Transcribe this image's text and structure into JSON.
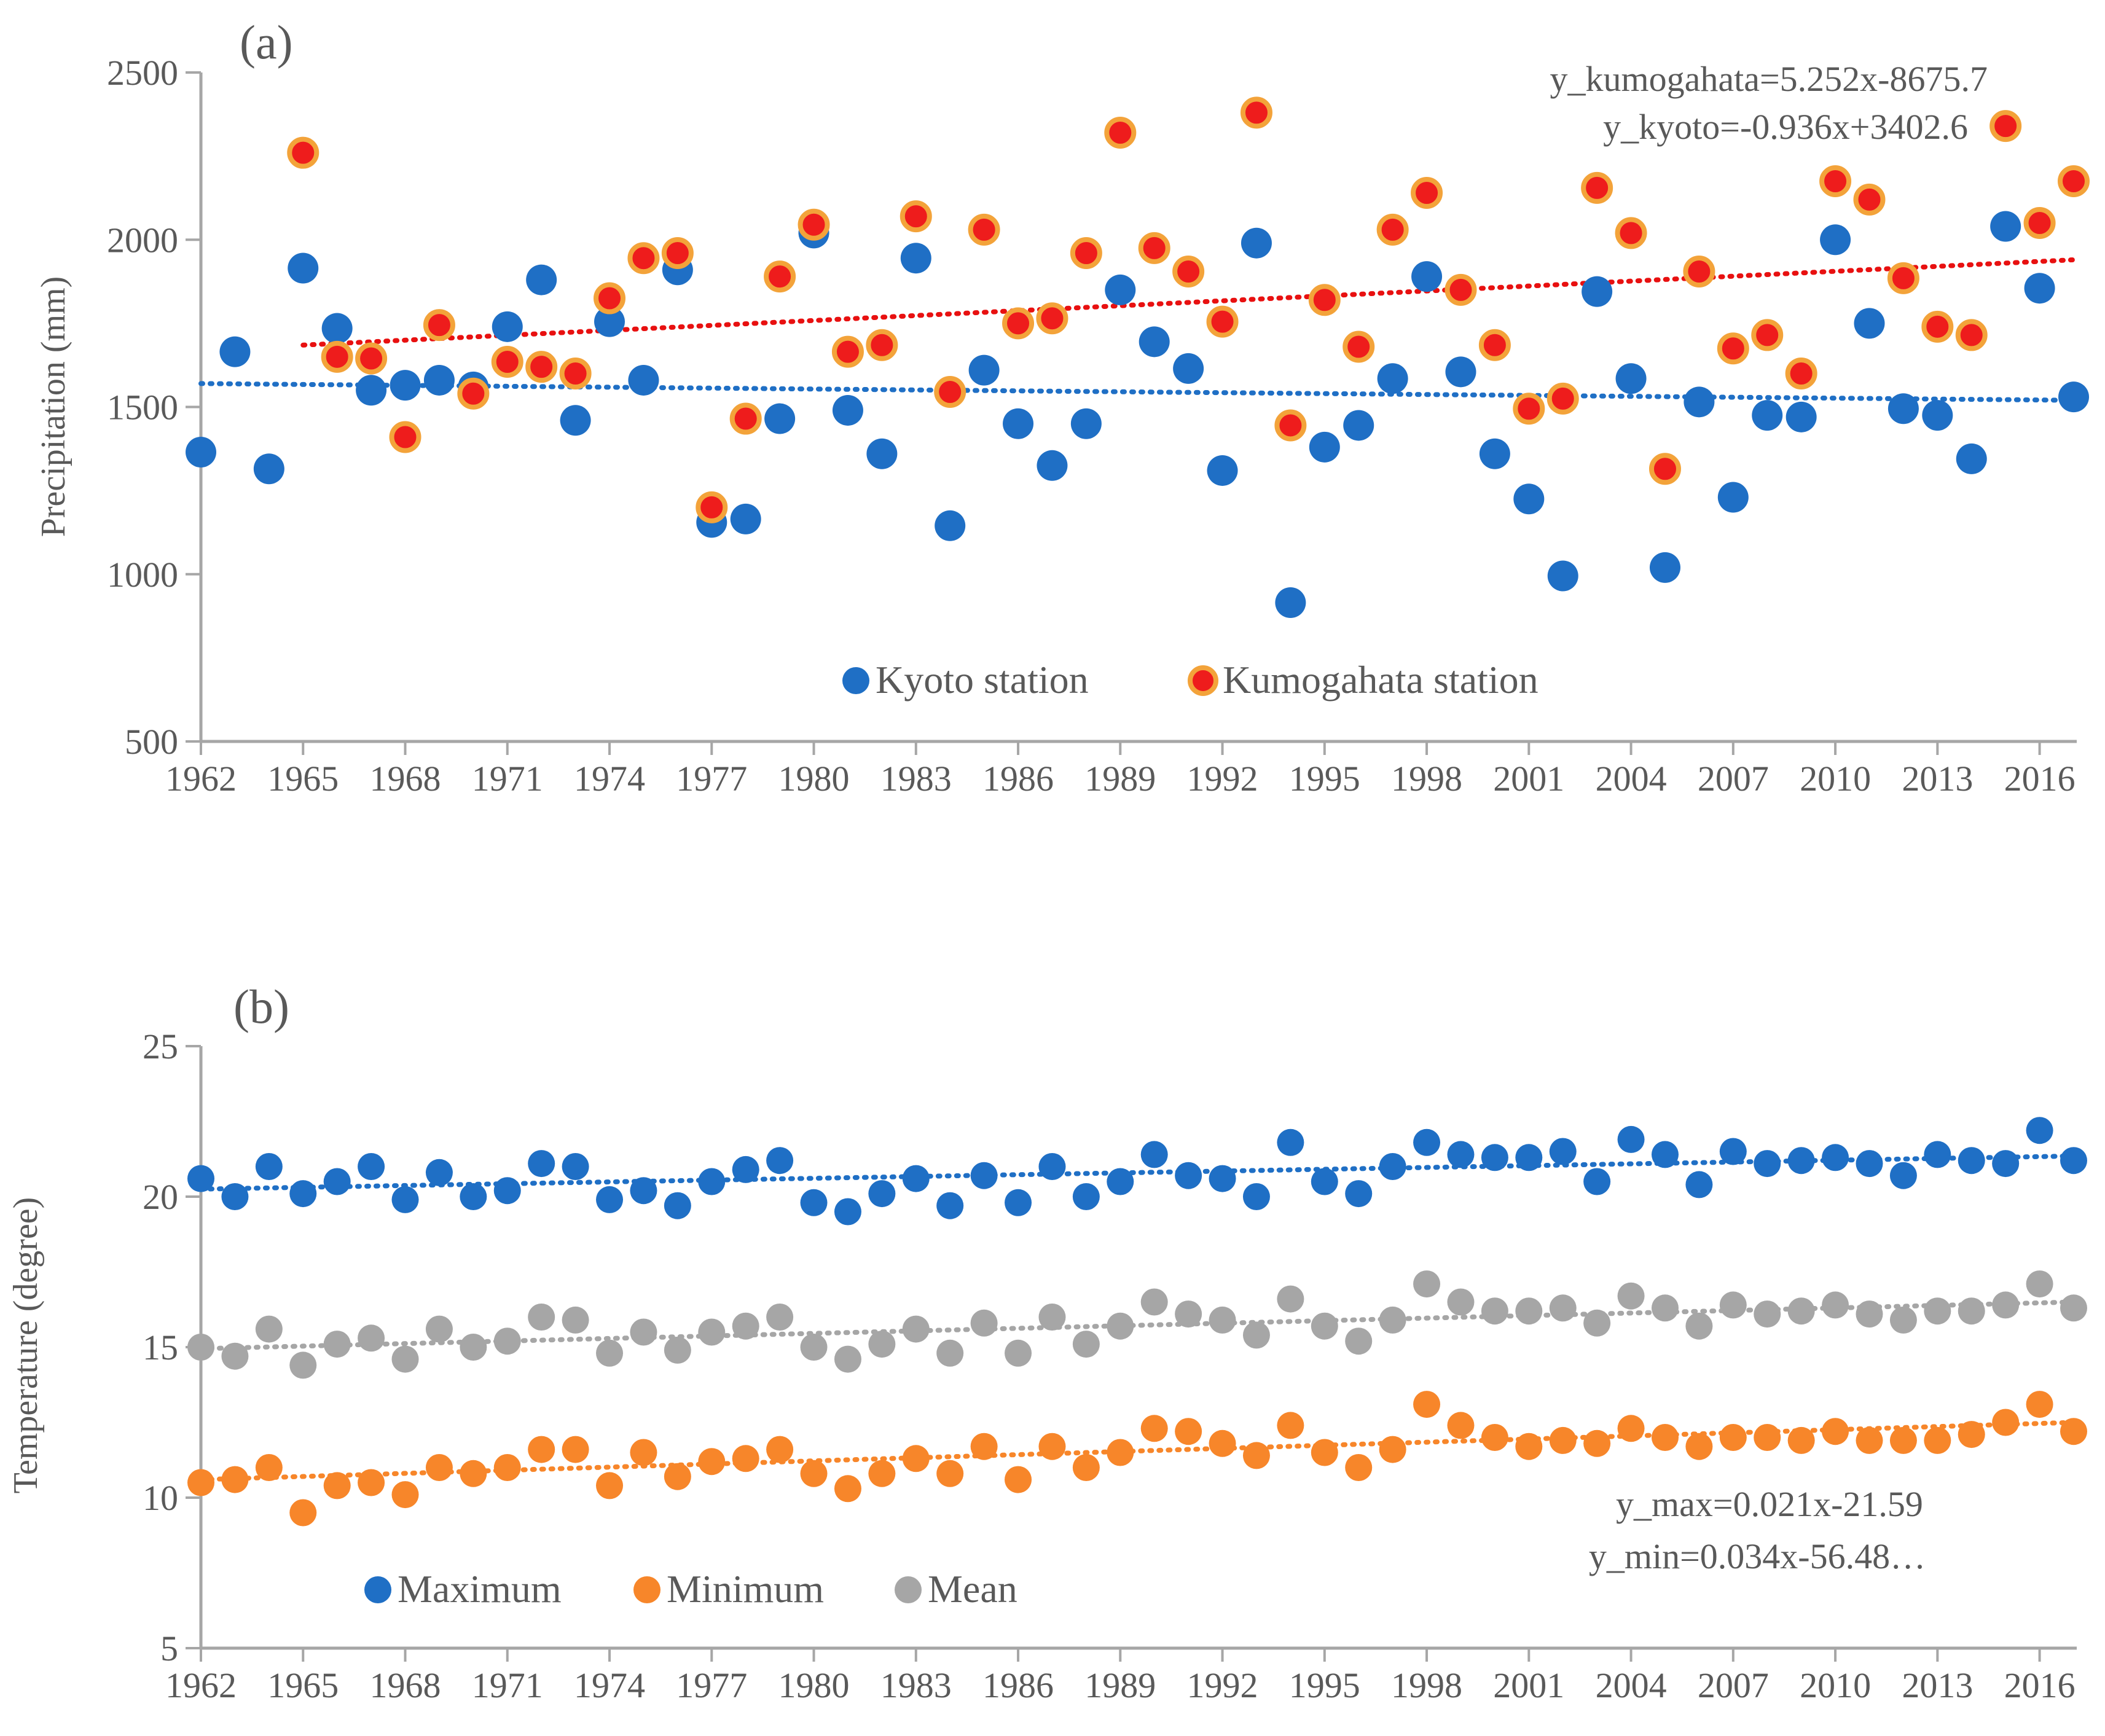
{
  "chart_data": [
    {
      "panel": "(a)",
      "type": "scatter",
      "ylabel": "Precipitation (mm)",
      "xlabel": "",
      "xlim": [
        1962,
        2017
      ],
      "ylim": [
        500,
        2500
      ],
      "yticks": [
        500,
        1000,
        1500,
        2000,
        2500
      ],
      "xticks": [
        1962,
        1965,
        1968,
        1971,
        1974,
        1977,
        1980,
        1983,
        1986,
        1989,
        1992,
        1995,
        1998,
        2001,
        2004,
        2007,
        2010,
        2013,
        2016
      ],
      "legend_position": "bottom-center",
      "equations": [
        "y_kumogahata=5.252x-8675.7",
        "y_kyoto=-0.936x+3402.6"
      ],
      "series": [
        {
          "name": "Kyoto station",
          "color": "#1f6fc5",
          "x": [
            1962,
            1963,
            1964,
            1965,
            1966,
            1967,
            1968,
            1969,
            1970,
            1971,
            1972,
            1973,
            1974,
            1975,
            1976,
            1977,
            1978,
            1979,
            1980,
            1981,
            1982,
            1983,
            1984,
            1985,
            1986,
            1987,
            1988,
            1989,
            1990,
            1991,
            1992,
            1993,
            1994,
            1995,
            1996,
            1997,
            1998,
            1999,
            2000,
            2001,
            2002,
            2003,
            2004,
            2005,
            2006,
            2007,
            2008,
            2009,
            2010,
            2011,
            2012,
            2013,
            2014,
            2015,
            2016,
            2017
          ],
          "values": [
            1365,
            1665,
            1315,
            1915,
            1735,
            1550,
            1565,
            1580,
            1560,
            1740,
            1880,
            1460,
            1755,
            1580,
            1910,
            1155,
            1165,
            1465,
            2020,
            1490,
            1360,
            1945,
            1145,
            1610,
            1450,
            1325,
            1450,
            1850,
            1695,
            1615,
            1310,
            1990,
            915,
            1380,
            1445,
            1585,
            1890,
            1605,
            1360,
            1225,
            995,
            1845,
            1585,
            1020,
            1515,
            1230,
            1475,
            1470,
            2000,
            1750,
            1495,
            1475,
            1345,
            2040,
            1855,
            1530
          ],
          "trend": {
            "start": 1570,
            "end": 1520
          }
        },
        {
          "name": "Kumogahata station",
          "color": "#ee1c1c",
          "border": "#f3a33a",
          "x": [
            1965,
            1966,
            1967,
            1968,
            1969,
            1970,
            1971,
            1972,
            1973,
            1974,
            1975,
            1976,
            1977,
            1978,
            1979,
            1980,
            1981,
            1982,
            1983,
            1984,
            1985,
            1986,
            1987,
            1988,
            1989,
            1990,
            1991,
            1992,
            1993,
            1994,
            1995,
            1996,
            1997,
            1998,
            1999,
            2000,
            2001,
            2002,
            2003,
            2004,
            2005,
            2006,
            2007,
            2008,
            2009,
            2010,
            2011,
            2012,
            2013,
            2014,
            2015,
            2016,
            2017
          ],
          "values": [
            2260,
            1650,
            1645,
            1410,
            1745,
            1540,
            1635,
            1620,
            1600,
            1825,
            1945,
            1960,
            1200,
            1465,
            1890,
            2045,
            1665,
            1685,
            2070,
            1545,
            2030,
            1750,
            1765,
            1960,
            2320,
            1975,
            1905,
            1755,
            2380,
            1445,
            1820,
            1680,
            2030,
            2140,
            1850,
            1685,
            1495,
            1525,
            2155,
            2020,
            1315,
            1905,
            1675,
            1715,
            1600,
            2175,
            2120,
            1885,
            1740,
            1715,
            2340,
            2050,
            2175
          ],
          "trend": {
            "start": 1685,
            "end": 1940
          }
        }
      ]
    },
    {
      "panel": "(b)",
      "type": "scatter",
      "ylabel": "Temperature (degree)",
      "xlabel": "",
      "xlim": [
        1962,
        2017
      ],
      "ylim": [
        5,
        25
      ],
      "yticks": [
        5,
        10,
        15,
        20,
        25
      ],
      "xticks": [
        1962,
        1965,
        1968,
        1971,
        1974,
        1977,
        1980,
        1983,
        1986,
        1989,
        1992,
        1995,
        1998,
        2001,
        2004,
        2007,
        2010,
        2013,
        2016
      ],
      "legend_position": "bottom-left",
      "equations": [
        "y_max=0.021x-21.59",
        "y_min=0.034x-56.48…"
      ],
      "series": [
        {
          "name": "Maximum",
          "color": "#1f6fc5",
          "values": [
            20.6,
            20.0,
            21.0,
            20.1,
            20.5,
            21.0,
            19.9,
            20.8,
            20.0,
            20.2,
            21.1,
            21.0,
            19.9,
            20.2,
            19.7,
            20.5,
            20.9,
            21.2,
            19.8,
            19.5,
            20.1,
            20.6,
            19.7,
            20.7,
            19.8,
            21.0,
            20.0,
            20.5,
            21.4,
            20.7,
            20.6,
            20.0,
            21.8,
            20.5,
            20.1,
            21.0,
            21.8,
            21.4,
            21.3,
            21.3,
            21.5,
            20.5,
            21.9,
            21.4,
            20.4,
            21.5,
            21.1,
            21.2,
            21.3,
            21.1,
            20.7,
            21.4,
            21.2,
            21.1,
            22.2,
            21.2
          ],
          "trend": {
            "start": 20.25,
            "end": 21.35
          }
        },
        {
          "name": "Minimum",
          "color": "#f7862a",
          "values": [
            10.5,
            10.6,
            11.0,
            9.5,
            10.4,
            10.5,
            10.1,
            11.0,
            10.8,
            11.0,
            11.6,
            11.6,
            10.4,
            11.5,
            10.7,
            11.2,
            11.3,
            11.6,
            10.8,
            10.3,
            10.8,
            11.3,
            10.8,
            11.7,
            10.6,
            11.7,
            11.0,
            11.5,
            12.3,
            12.2,
            11.8,
            11.4,
            12.4,
            11.5,
            11.0,
            11.6,
            13.1,
            12.4,
            12.0,
            11.7,
            11.9,
            11.8,
            12.3,
            12.0,
            11.7,
            12.0,
            12.0,
            11.9,
            12.2,
            11.9,
            11.9,
            11.9,
            12.1,
            12.5,
            13.1,
            12.2
          ],
          "trend": {
            "start": 10.6,
            "end": 12.5
          }
        },
        {
          "name": "Mean",
          "color": "#a6a6a6",
          "values": [
            15.0,
            14.7,
            15.6,
            14.4,
            15.1,
            15.3,
            14.6,
            15.6,
            15.0,
            15.2,
            16.0,
            15.9,
            14.8,
            15.5,
            14.9,
            15.5,
            15.7,
            16.0,
            15.0,
            14.6,
            15.1,
            15.6,
            14.8,
            15.8,
            14.8,
            16.0,
            15.1,
            15.7,
            16.5,
            16.1,
            15.9,
            15.4,
            16.6,
            15.7,
            15.2,
            15.9,
            17.1,
            16.5,
            16.2,
            16.2,
            16.3,
            15.8,
            16.7,
            16.3,
            15.7,
            16.4,
            16.1,
            16.2,
            16.4,
            16.1,
            15.9,
            16.2,
            16.2,
            16.4,
            17.1,
            16.3
          ],
          "trend": {
            "start": 14.95,
            "end": 16.5
          }
        }
      ]
    }
  ]
}
